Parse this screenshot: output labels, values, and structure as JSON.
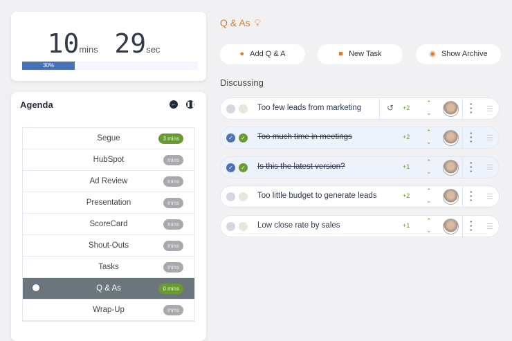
{
  "timer": {
    "minutes": "10",
    "minutes_unit": "mins",
    "seconds": "29",
    "seconds_unit": "sec",
    "progress_label": "30%",
    "progress": 0.3
  },
  "agenda": {
    "title": "Agenda",
    "items": [
      {
        "label": "Segue",
        "badge": "3 mins",
        "active": false,
        "badge_green": true
      },
      {
        "label": "HubSpot",
        "badge": "mins"
      },
      {
        "label": "Ad Review",
        "badge": "mins"
      },
      {
        "label": "Presentation",
        "badge": "mins"
      },
      {
        "label": "ScoreCard",
        "badge": "mins"
      },
      {
        "label": "Shout-Outs",
        "badge": "mins"
      },
      {
        "label": "Tasks",
        "badge": "mins"
      },
      {
        "label": "Q & As",
        "badge": "0 mins",
        "active": true,
        "badge_green": true
      },
      {
        "label": "Wrap-Up",
        "badge": "mins"
      }
    ]
  },
  "main": {
    "title": "Q & As",
    "buttons": {
      "add": "Add Q & A",
      "task": "New Task",
      "archive": "Show Archive"
    },
    "section": "Discussing",
    "items": [
      {
        "text": "Too few leads from marketing",
        "votes": "+2",
        "done": false
      },
      {
        "text": "Too much time in meetings",
        "votes": "+2",
        "done": true
      },
      {
        "text": "Is this the latest version?",
        "votes": "+1",
        "done": true
      },
      {
        "text": "Too little budget to generate leads",
        "votes": "+2",
        "done": false
      },
      {
        "text": "Low close rate by sales",
        "votes": "+1",
        "done": false
      }
    ]
  },
  "colors": {
    "accent": "#4a72b8",
    "green": "#6a9a32",
    "orange": "#e07a26"
  }
}
